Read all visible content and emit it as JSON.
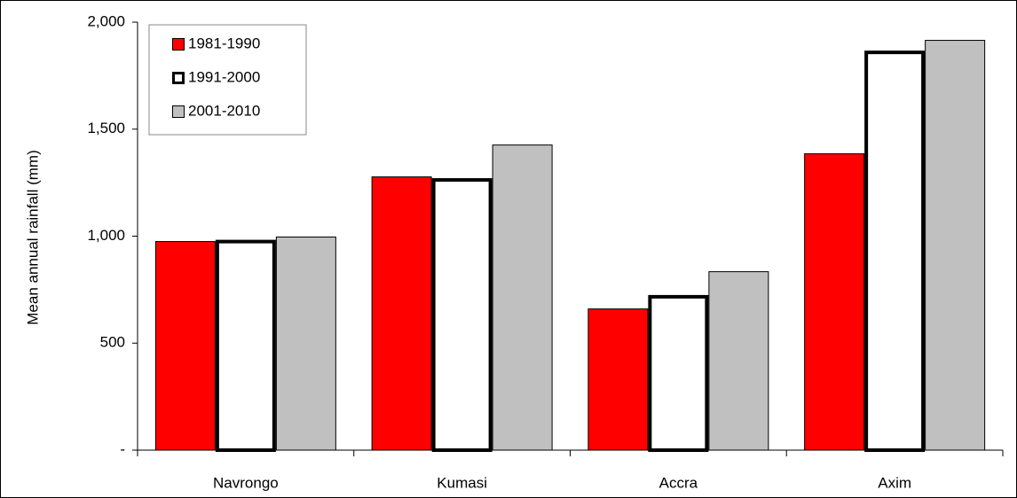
{
  "chart_data": {
    "type": "bar",
    "categories": [
      "Navrongo",
      "Kumasi",
      "Accra",
      "Axim"
    ],
    "series": [
      {
        "name": "1981-1990",
        "color": "#ff0000",
        "linewidth": 1,
        "values": [
          977,
          1279,
          662,
          1387
        ]
      },
      {
        "name": "1991-2000",
        "color": "#ffffff",
        "linewidth": 4,
        "values": [
          983,
          1271,
          725,
          1867
        ]
      },
      {
        "name": "2001-2010",
        "color": "#c0c0c0",
        "linewidth": 1,
        "values": [
          998,
          1428,
          836,
          1917
        ]
      }
    ],
    "ylabel": "Mean annual rainfall (mm)",
    "ylim": [
      0,
      2000
    ],
    "yticks": [
      {
        "value": 0,
        "label": "-"
      },
      500,
      {
        "value": 1000,
        "label": "1,000"
      },
      {
        "value": 1500,
        "label": "1,500"
      },
      {
        "value": 2000,
        "label": "2,000"
      }
    ],
    "grid": false,
    "legend": "upper left"
  }
}
